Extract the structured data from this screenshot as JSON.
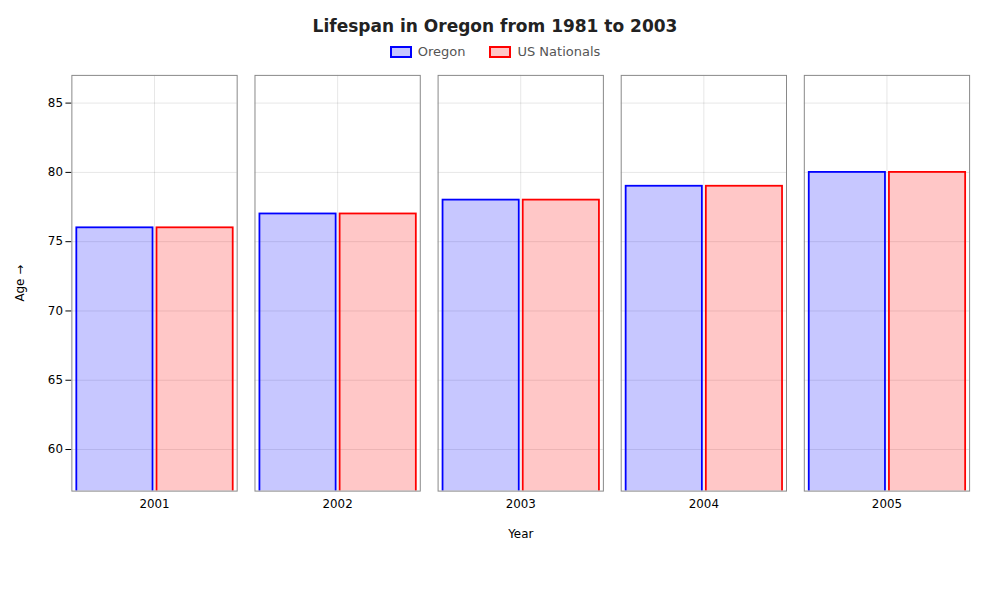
{
  "chart_data": {
    "type": "bar",
    "title": "Lifespan in Oregon from 1981 to 2003",
    "xlabel": "Year",
    "ylabel": "Age",
    "categories": [
      "2001",
      "2002",
      "2003",
      "2004",
      "2005"
    ],
    "series": [
      {
        "name": "Oregon",
        "color": "#0000ff",
        "values": [
          76,
          77,
          78,
          79,
          80
        ]
      },
      {
        "name": "US Nationals",
        "color": "#ff0000",
        "values": [
          76,
          77,
          78,
          79,
          80
        ]
      }
    ],
    "ylim": [
      57,
      87
    ],
    "yticks": [
      60,
      65,
      70,
      75,
      80,
      85
    ],
    "grid": true,
    "legend": "top"
  }
}
